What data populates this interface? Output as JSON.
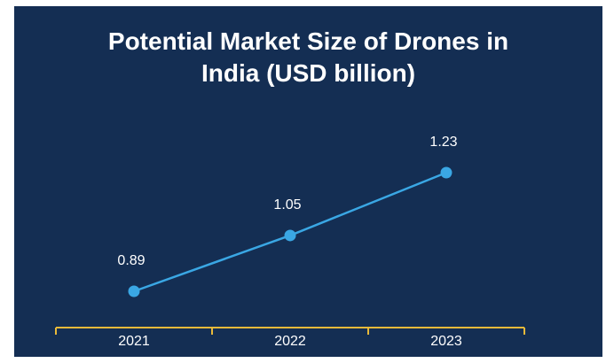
{
  "title_lines": [
    "Potential Market Size of Drones in",
    "India (USD billion)"
  ],
  "colors": {
    "background": "#142e53",
    "line": "#3aa7e4",
    "axis": "#e8b93a",
    "text": "#ffffff"
  },
  "chart_data": {
    "type": "line",
    "title": "Potential Market Size of Drones in India (USD billion)",
    "categories": [
      "2021",
      "2022",
      "2023"
    ],
    "values": [
      0.89,
      1.05,
      1.23
    ],
    "data_labels": [
      "0.89",
      "1.05",
      "1.23"
    ],
    "xlabel": "",
    "ylabel": "",
    "grid": false,
    "legend": "none"
  }
}
